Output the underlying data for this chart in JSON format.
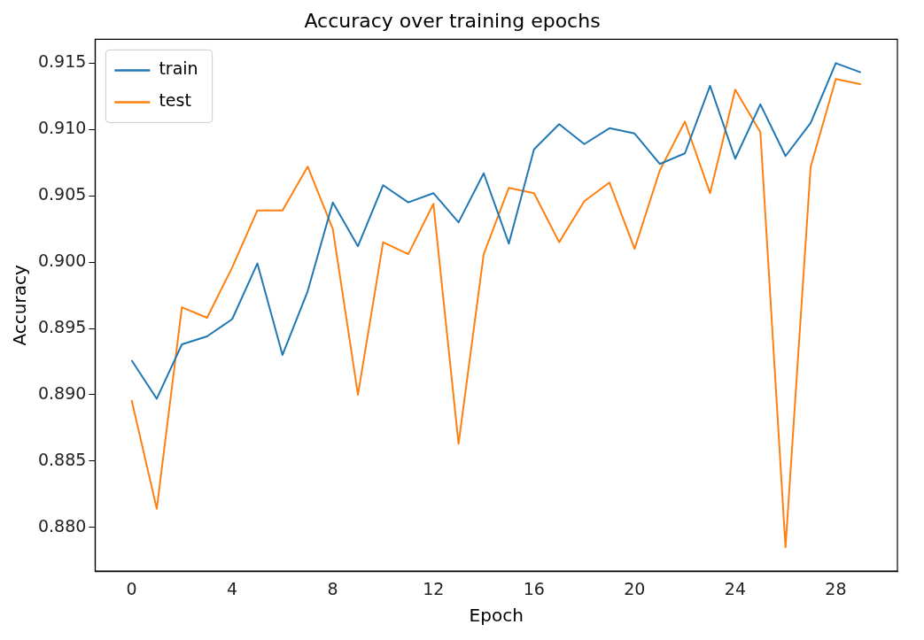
{
  "chart_data": {
    "type": "line",
    "title": "Accuracy over training epochs",
    "xlabel": "Epoch",
    "ylabel": "Accuracy",
    "x": [
      0,
      1,
      2,
      3,
      4,
      5,
      6,
      7,
      8,
      9,
      10,
      11,
      12,
      13,
      14,
      15,
      16,
      17,
      18,
      19,
      20,
      21,
      22,
      23,
      24,
      25,
      26,
      27,
      28,
      29
    ],
    "series": [
      {
        "name": "train",
        "color": "#1f77b4",
        "values": [
          0.8926,
          0.8897,
          0.8938,
          0.8944,
          0.8957,
          0.8999,
          0.893,
          0.8978,
          0.9045,
          0.9012,
          0.9058,
          0.9045,
          0.9052,
          0.903,
          0.9067,
          0.9014,
          0.9085,
          0.9104,
          0.9089,
          0.9101,
          0.9097,
          0.9074,
          0.9082,
          0.9133,
          0.9078,
          0.9119,
          0.908,
          0.9105,
          0.915,
          0.9143
        ]
      },
      {
        "name": "test",
        "color": "#ff7f0e",
        "values": [
          0.8896,
          0.8814,
          0.8966,
          0.8958,
          0.8996,
          0.9039,
          0.9039,
          0.9072,
          0.9025,
          0.89,
          0.9015,
          0.9006,
          0.9044,
          0.8863,
          0.9006,
          0.9056,
          0.9052,
          0.9015,
          0.9046,
          0.906,
          0.901,
          0.9069,
          0.9106,
          0.9052,
          0.913,
          0.9098,
          0.8785,
          0.9072,
          0.9138,
          0.9134
        ]
      }
    ],
    "xlim": [
      -1.45,
      30.45
    ],
    "xticks": [
      0,
      4,
      8,
      12,
      16,
      20,
      24,
      28
    ],
    "ylim": [
      0.8767,
      0.9168
    ],
    "yticks": [
      {
        "value": 0.88,
        "label": "0.880"
      },
      {
        "value": 0.885,
        "label": "0.885"
      },
      {
        "value": 0.89,
        "label": "0.890"
      },
      {
        "value": 0.895,
        "label": "0.895"
      },
      {
        "value": 0.9,
        "label": "0.900"
      },
      {
        "value": 0.905,
        "label": "0.905"
      },
      {
        "value": 0.91,
        "label": "0.910"
      },
      {
        "value": 0.915,
        "label": "0.915"
      }
    ],
    "grid": false,
    "legend": "top left",
    "marker": "none",
    "line_style": "solid"
  }
}
